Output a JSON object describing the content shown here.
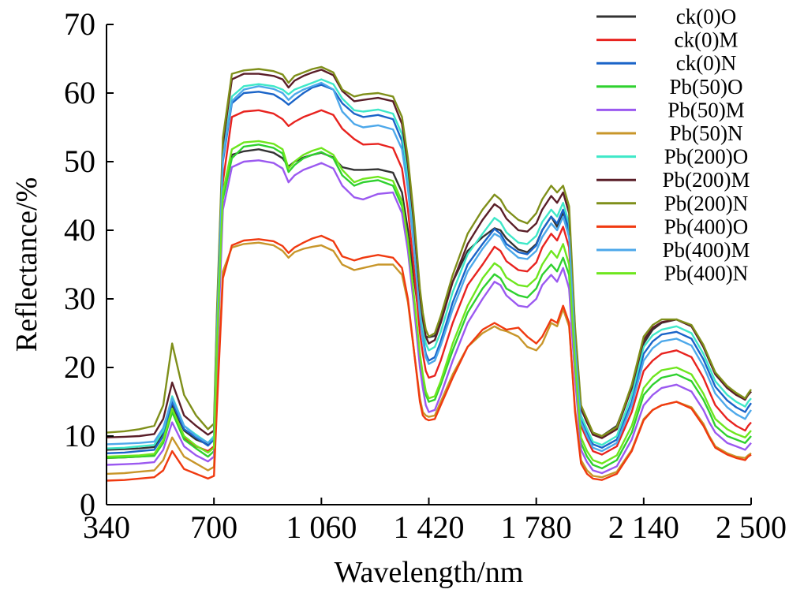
{
  "chart_data": {
    "type": "line",
    "xlabel": "Wavelength/nm",
    "ylabel": "Reflectance/%",
    "xlim": [
      340,
      2500
    ],
    "ylim": [
      0,
      70
    ],
    "x_ticks": [
      340,
      700,
      1060,
      1420,
      1780,
      2140,
      2500
    ],
    "x_tick_labels": [
      "340",
      "700",
      "1 060",
      "1 420",
      "1 780",
      "2 140",
      "2 500"
    ],
    "y_ticks": [
      0,
      10,
      20,
      30,
      40,
      50,
      60,
      70
    ],
    "y_tick_labels": [
      "0",
      "10",
      "20",
      "30",
      "40",
      "50",
      "60",
      "70"
    ],
    "grid": false,
    "legend_position": "top-right",
    "x": [
      340,
      400,
      450,
      500,
      530,
      560,
      600,
      640,
      680,
      700,
      710,
      730,
      760,
      800,
      850,
      900,
      930,
      950,
      970,
      1000,
      1030,
      1060,
      1100,
      1130,
      1170,
      1200,
      1250,
      1300,
      1330,
      1350,
      1370,
      1390,
      1400,
      1410,
      1420,
      1440,
      1460,
      1500,
      1550,
      1600,
      1640,
      1660,
      1680,
      1720,
      1750,
      1780,
      1800,
      1830,
      1850,
      1870,
      1890,
      1910,
      1930,
      1950,
      1970,
      2000,
      2050,
      2100,
      2140,
      2170,
      2200,
      2250,
      2300,
      2340,
      2360,
      2380,
      2420,
      2450,
      2480,
      2490,
      2500
    ],
    "series": [
      {
        "name": "ck(0)O",
        "color": "#333333",
        "values": [
          8.0,
          8.1,
          8.2,
          8.4,
          10.5,
          14.5,
          10.8,
          9.5,
          8.8,
          9.8,
          24,
          45.5,
          51,
          51.5,
          51.8,
          51.3,
          50.5,
          49.3,
          50.0,
          50.6,
          51.0,
          51.3,
          50.6,
          49.2,
          48.8,
          48.8,
          48.9,
          48.4,
          45.5,
          40.0,
          33.0,
          26.5,
          25.0,
          24.5,
          24.4,
          24.6,
          27.0,
          32.5,
          37.0,
          39.0,
          40.3,
          40.0,
          38.8,
          37.2,
          36.8,
          38.0,
          40.0,
          42.0,
          40.5,
          42.5,
          40.0,
          25.0,
          14.0,
          12.0,
          10.5,
          10.0,
          11.5,
          17.0,
          23.5,
          25.5,
          26.5,
          27.0,
          26.0,
          23.0,
          21.0,
          19.0,
          17.0,
          16.0,
          15.5,
          16.0,
          16.5
        ]
      },
      {
        "name": "ck(0)M",
        "color": "#e8231f",
        "values": [
          6.8,
          6.9,
          7.0,
          7.2,
          9.2,
          13.5,
          9.8,
          8.5,
          7.8,
          8.5,
          22,
          47.0,
          56.5,
          57.3,
          57.5,
          57.0,
          56.2,
          55.2,
          55.8,
          56.5,
          57.0,
          57.5,
          56.8,
          54.8,
          53.3,
          52.5,
          52.6,
          52.0,
          49.0,
          43.0,
          34.5,
          25.0,
          22.0,
          19.5,
          18.5,
          18.8,
          21.0,
          26.5,
          32.0,
          35.0,
          37.6,
          37.0,
          35.5,
          34.2,
          34.0,
          35.3,
          37.5,
          39.5,
          38.5,
          40.5,
          37.5,
          22.0,
          11.5,
          9.5,
          7.8,
          7.3,
          8.5,
          13.5,
          19.5,
          21.0,
          22.0,
          22.5,
          21.5,
          18.5,
          16.5,
          14.5,
          12.5,
          11.5,
          10.8,
          11.5,
          12.0
        ]
      },
      {
        "name": "ck(0)N",
        "color": "#1a64c8",
        "values": [
          7.5,
          7.6,
          7.8,
          8.0,
          10.0,
          15.0,
          11.0,
          9.8,
          8.6,
          9.5,
          25,
          50.0,
          58.5,
          60.0,
          60.2,
          59.8,
          59.0,
          58.3,
          59.0,
          60.0,
          60.8,
          61.2,
          60.5,
          58.5,
          57.0,
          56.5,
          56.8,
          56.2,
          53.0,
          47.0,
          38.5,
          28.0,
          24.5,
          22.0,
          21.0,
          21.5,
          23.8,
          29.5,
          35.0,
          38.0,
          40.2,
          39.5,
          38.0,
          36.8,
          36.5,
          37.8,
          40.0,
          42.0,
          41.0,
          43.0,
          40.0,
          24.0,
          12.5,
          10.5,
          8.8,
          8.3,
          9.5,
          15.0,
          22.0,
          23.8,
          24.8,
          25.2,
          24.2,
          21.2,
          19.2,
          17.2,
          15.2,
          14.2,
          13.5,
          14.2,
          14.8
        ]
      },
      {
        "name": "Pb(50)O",
        "color": "#2fd12f",
        "values": [
          6.8,
          6.9,
          7.0,
          7.1,
          9.0,
          13.5,
          9.5,
          8.2,
          7.0,
          7.8,
          22,
          44.5,
          50.5,
          52.2,
          52.5,
          52.0,
          51.2,
          48.5,
          49.5,
          50.5,
          51.0,
          51.4,
          50.5,
          48.0,
          46.5,
          47.0,
          47.3,
          46.5,
          43.5,
          38.0,
          30.0,
          21.5,
          18.5,
          16.0,
          15.0,
          15.3,
          17.5,
          22.5,
          28.0,
          31.5,
          33.6,
          33.0,
          31.5,
          30.5,
          30.2,
          31.5,
          33.5,
          35.0,
          34.0,
          36.0,
          33.5,
          19.5,
          9.0,
          7.0,
          5.8,
          5.3,
          6.5,
          10.5,
          16.0,
          17.5,
          18.5,
          19.0,
          18.0,
          15.3,
          13.5,
          11.5,
          10.0,
          9.5,
          9.0,
          9.5,
          10.0
        ]
      },
      {
        "name": "Pb(50)M",
        "color": "#9b59f0",
        "values": [
          5.8,
          5.9,
          6.0,
          6.2,
          8.0,
          12.0,
          8.5,
          7.2,
          6.3,
          7.0,
          20,
          43.0,
          49.2,
          50.0,
          50.2,
          49.8,
          49.0,
          47.0,
          48.0,
          48.8,
          49.3,
          49.8,
          49.0,
          46.5,
          44.8,
          44.5,
          45.3,
          45.5,
          42.5,
          37.0,
          29.0,
          20.0,
          17.0,
          14.5,
          13.5,
          13.8,
          16.0,
          21.0,
          26.5,
          30.0,
          32.5,
          32.0,
          30.5,
          29.0,
          28.8,
          30.0,
          32.0,
          33.5,
          32.5,
          34.5,
          31.5,
          18.5,
          8.0,
          6.2,
          5.0,
          4.6,
          5.6,
          9.5,
          14.5,
          16.0,
          17.0,
          17.5,
          16.5,
          13.8,
          12.0,
          10.5,
          9.0,
          8.5,
          8.0,
          8.5,
          9.0
        ]
      },
      {
        "name": "Pb(50)N",
        "color": "#c8962a",
        "values": [
          4.5,
          4.6,
          4.8,
          5.0,
          6.5,
          9.8,
          7.0,
          6.0,
          5.0,
          5.5,
          15,
          34.0,
          37.5,
          38.0,
          38.2,
          37.8,
          37.0,
          36.0,
          36.8,
          37.3,
          37.6,
          37.8,
          37.0,
          35.0,
          34.2,
          34.5,
          35.0,
          35.0,
          33.5,
          29.5,
          22.5,
          15.5,
          13.5,
          13.0,
          12.8,
          13.0,
          15.0,
          19.0,
          23.0,
          25.0,
          26.0,
          25.5,
          25.3,
          24.5,
          23.0,
          22.5,
          23.5,
          26.5,
          26.0,
          28.5,
          26.0,
          14.0,
          6.5,
          5.0,
          4.2,
          4.0,
          4.8,
          8.0,
          12.5,
          13.8,
          14.5,
          15.0,
          14.2,
          11.8,
          10.0,
          8.5,
          7.5,
          7.0,
          6.8,
          7.2,
          7.5
        ]
      },
      {
        "name": "Pb(200)O",
        "color": "#3ee8c8",
        "values": [
          8.2,
          8.3,
          8.5,
          8.7,
          10.8,
          15.8,
          11.5,
          10.2,
          9.0,
          10.0,
          26,
          51.0,
          59.5,
          61.0,
          61.3,
          61.0,
          60.5,
          59.8,
          60.5,
          61.0,
          61.5,
          62.0,
          61.3,
          59.2,
          57.5,
          57.3,
          57.6,
          57.0,
          54.0,
          48.0,
          39.5,
          29.5,
          26.0,
          23.5,
          22.5,
          23.0,
          25.2,
          31.0,
          36.5,
          39.5,
          41.8,
          41.2,
          39.7,
          38.2,
          38.0,
          39.2,
          41.2,
          43.0,
          42.0,
          44.0,
          41.0,
          24.5,
          13.0,
          11.0,
          9.2,
          8.7,
          10.0,
          16.0,
          23.0,
          24.7,
          25.5,
          26.0,
          25.0,
          22.0,
          20.0,
          18.0,
          16.0,
          15.0,
          14.3,
          15.0,
          15.5
        ]
      },
      {
        "name": "Pb(200)M",
        "color": "#5a1e28",
        "values": [
          9.8,
          9.9,
          10.0,
          10.3,
          12.5,
          17.8,
          13.0,
          11.5,
          10.2,
          10.8,
          27,
          52.5,
          62.0,
          62.8,
          62.8,
          62.5,
          62.0,
          60.8,
          61.8,
          62.5,
          63.0,
          63.4,
          62.6,
          60.3,
          58.8,
          59.0,
          59.3,
          58.8,
          55.5,
          49.5,
          41.0,
          30.5,
          27.0,
          24.5,
          23.5,
          24.0,
          26.5,
          32.5,
          38.0,
          41.5,
          43.8,
          43.2,
          41.7,
          40.0,
          39.8,
          41.0,
          43.0,
          45.0,
          44.0,
          45.5,
          42.5,
          25.5,
          14.0,
          12.0,
          10.2,
          9.7,
          11.0,
          17.0,
          24.0,
          25.8,
          26.6,
          27.0,
          26.0,
          23.0,
          21.0,
          19.0,
          17.0,
          16.0,
          15.3,
          16.0,
          16.5
        ]
      },
      {
        "name": "Pb(200)N",
        "color": "#7f8f1a",
        "values": [
          10.5,
          10.7,
          11.0,
          11.5,
          14.5,
          23.5,
          16.0,
          13.0,
          11.0,
          11.8,
          28,
          53.5,
          62.8,
          63.3,
          63.5,
          63.2,
          62.7,
          61.5,
          62.5,
          63.0,
          63.5,
          63.8,
          63.0,
          60.5,
          59.5,
          59.8,
          60.0,
          59.5,
          56.5,
          50.5,
          42.0,
          31.5,
          28.0,
          25.5,
          24.5,
          25.0,
          27.5,
          33.5,
          39.5,
          43.0,
          45.2,
          44.5,
          43.0,
          41.5,
          41.0,
          42.5,
          44.5,
          46.5,
          45.5,
          46.5,
          43.5,
          26.0,
          14.5,
          12.5,
          10.5,
          10.0,
          11.3,
          17.5,
          24.5,
          26.2,
          27.0,
          27.0,
          26.2,
          23.3,
          21.3,
          19.3,
          17.3,
          16.3,
          15.5,
          16.2,
          16.8
        ]
      },
      {
        "name": "Pb(400)O",
        "color": "#f03a10",
        "values": [
          3.5,
          3.6,
          3.8,
          4.0,
          5.0,
          7.8,
          5.2,
          4.5,
          3.8,
          4.2,
          14,
          33.0,
          37.8,
          38.5,
          38.7,
          38.4,
          37.7,
          36.7,
          37.5,
          38.2,
          38.8,
          39.2,
          38.4,
          36.2,
          35.6,
          36.0,
          36.4,
          36.0,
          34.5,
          30.0,
          22.5,
          15.0,
          13.0,
          12.5,
          12.3,
          12.5,
          14.5,
          18.5,
          23.0,
          25.5,
          26.5,
          26.0,
          25.5,
          25.8,
          24.5,
          23.5,
          24.5,
          27.0,
          26.5,
          29.0,
          26.5,
          13.5,
          6.0,
          4.5,
          3.8,
          3.6,
          4.5,
          7.8,
          12.3,
          13.8,
          14.5,
          15.0,
          14.0,
          11.5,
          9.8,
          8.3,
          7.3,
          6.8,
          6.5,
          7.0,
          7.3
        ]
      },
      {
        "name": "Pb(400)M",
        "color": "#4da8ea",
        "values": [
          8.8,
          8.9,
          9.0,
          9.2,
          11.2,
          15.5,
          11.5,
          10.0,
          9.0,
          9.7,
          25,
          50.5,
          58.8,
          60.5,
          61.0,
          60.6,
          60.0,
          59.0,
          59.8,
          60.5,
          61.0,
          61.5,
          60.5,
          57.3,
          55.5,
          55.0,
          55.3,
          54.7,
          51.8,
          46.0,
          37.5,
          27.5,
          24.0,
          21.5,
          20.5,
          21.0,
          23.2,
          28.5,
          34.0,
          37.3,
          39.5,
          39.0,
          37.5,
          36.0,
          35.8,
          37.0,
          39.0,
          41.0,
          40.0,
          42.0,
          39.0,
          23.0,
          12.0,
          10.0,
          8.3,
          7.8,
          9.0,
          14.5,
          21.0,
          22.8,
          23.8,
          24.2,
          23.2,
          20.2,
          18.2,
          16.2,
          14.2,
          13.2,
          12.5,
          13.2,
          13.8
        ]
      },
      {
        "name": "Pb(400)N",
        "color": "#6ee61e",
        "values": [
          7.0,
          7.1,
          7.2,
          7.4,
          9.4,
          14.0,
          10.0,
          8.6,
          7.6,
          8.3,
          23,
          45.5,
          51.8,
          52.8,
          53.0,
          52.6,
          51.8,
          49.0,
          50.0,
          51.0,
          51.6,
          52.0,
          51.0,
          48.8,
          47.0,
          47.5,
          47.8,
          47.2,
          44.2,
          38.5,
          30.5,
          22.0,
          19.0,
          16.5,
          15.5,
          15.8,
          18.0,
          23.5,
          29.0,
          33.0,
          35.2,
          34.6,
          33.1,
          32.0,
          31.8,
          33.0,
          35.0,
          37.0,
          36.0,
          38.0,
          35.0,
          20.5,
          9.8,
          7.8,
          6.5,
          6.0,
          7.2,
          11.5,
          17.0,
          18.6,
          19.6,
          20.0,
          19.0,
          16.2,
          14.3,
          12.5,
          11.0,
          10.3,
          9.8,
          10.3,
          10.8
        ]
      }
    ]
  }
}
